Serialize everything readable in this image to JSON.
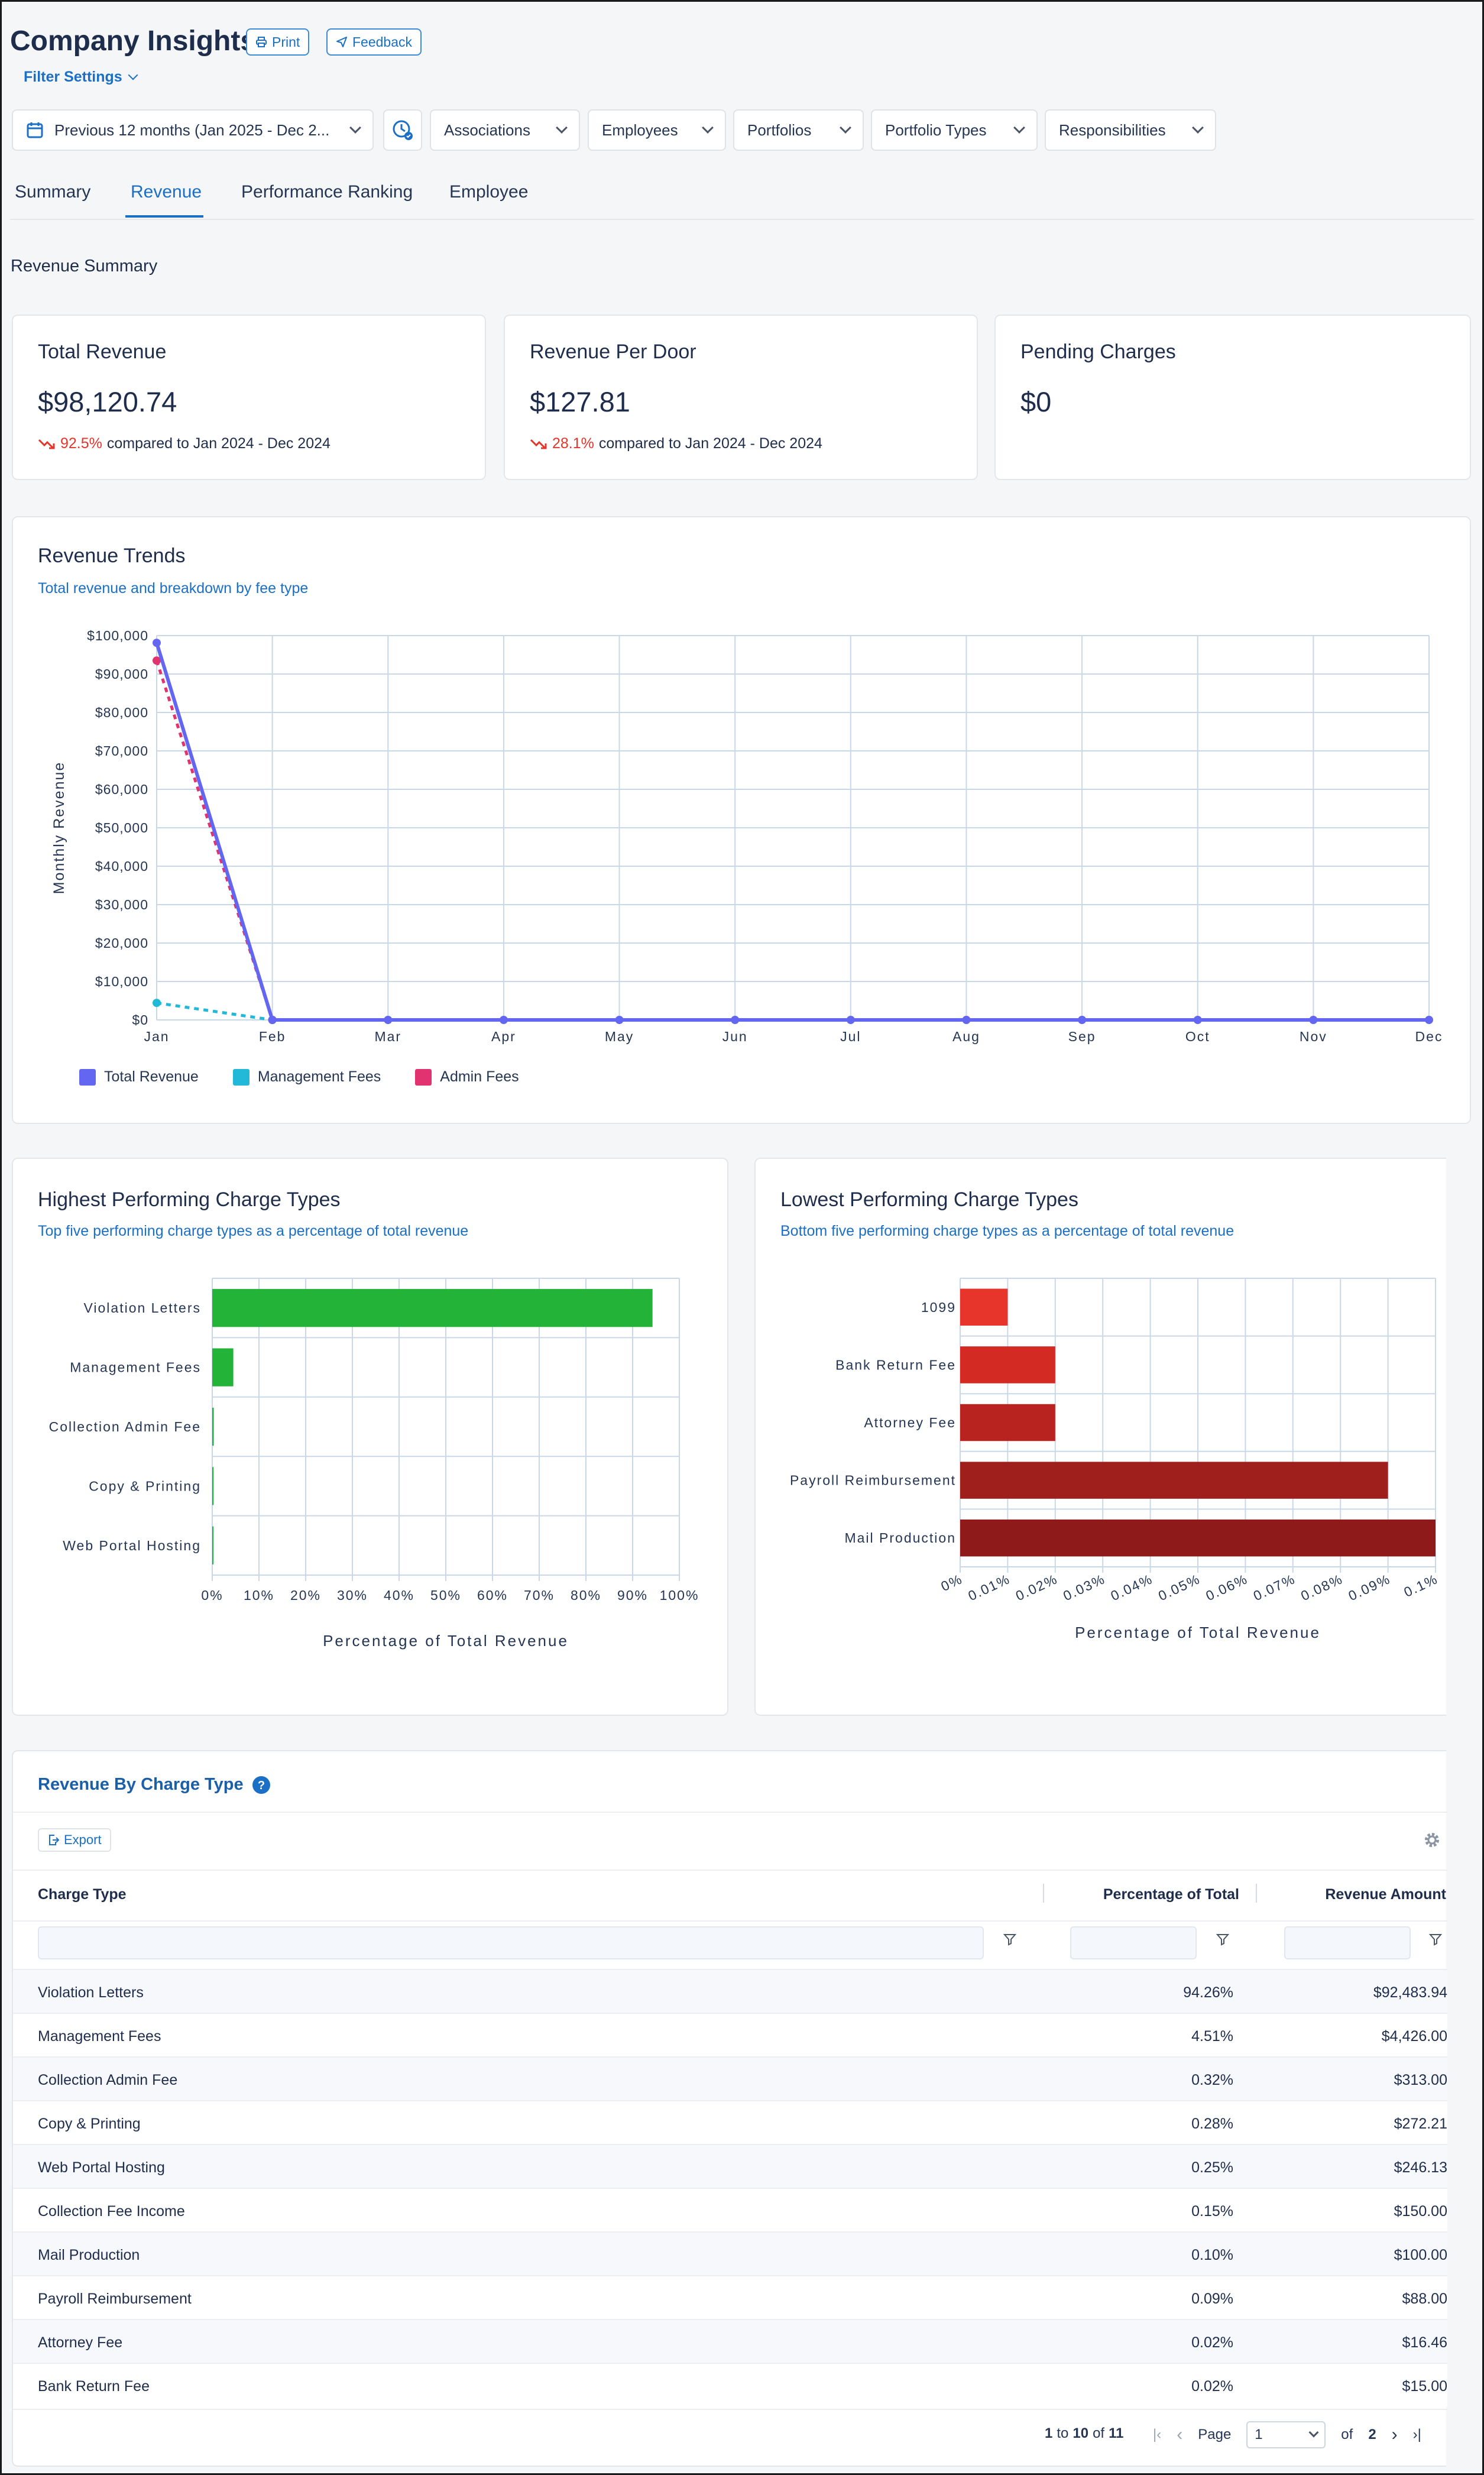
{
  "header": {
    "title": "Company Insights",
    "print_label": "Print",
    "feedback_label": "Feedback",
    "filter_settings_label": "Filter Settings"
  },
  "filters": {
    "date_range": "Previous 12 months (Jan 2025 - Dec 2...",
    "associations": "Associations",
    "employees": "Employees",
    "portfolios": "Portfolios",
    "portfolio_types": "Portfolio Types",
    "responsibilities": "Responsibilities"
  },
  "tabs": [
    "Summary",
    "Revenue",
    "Performance Ranking",
    "Employee"
  ],
  "active_tab": "Revenue",
  "section_title": "Revenue Summary",
  "kpis": [
    {
      "title": "Total Revenue",
      "value": "$98,120.74",
      "change": "92.5%",
      "compare": "compared to Jan 2024 - Dec 2024"
    },
    {
      "title": "Revenue Per Door",
      "value": "$127.81",
      "change": "28.1%",
      "compare": "compared to Jan 2024 - Dec 2024"
    },
    {
      "title": "Pending Charges",
      "value": "$0"
    }
  ],
  "trends": {
    "title": "Revenue Trends",
    "subtitle": "Total revenue and breakdown by fee type"
  },
  "highest": {
    "title": "Highest Performing Charge Types",
    "subtitle": "Top five performing charge types as a percentage of total revenue"
  },
  "lowest": {
    "title": "Lowest Performing Charge Types",
    "subtitle": "Bottom five performing charge types as a percentage of total revenue"
  },
  "chart_data": [
    {
      "type": "line",
      "x": [
        "Jan",
        "Feb",
        "Mar",
        "Apr",
        "May",
        "Jun",
        "Jul",
        "Aug",
        "Sep",
        "Oct",
        "Nov",
        "Dec"
      ],
      "series": [
        {
          "name": "Total Revenue",
          "color": "#6366f1",
          "values": [
            98120.74,
            0,
            0,
            0,
            0,
            0,
            0,
            0,
            0,
            0,
            0,
            0
          ]
        },
        {
          "name": "Management Fees",
          "color": "#22b8d8",
          "values": [
            4426,
            0,
            null,
            null,
            null,
            null,
            null,
            null,
            null,
            null,
            null,
            null
          ]
        },
        {
          "name": "Admin Fees",
          "color": "#e0336f",
          "values": [
            93500,
            0,
            null,
            null,
            null,
            null,
            null,
            null,
            null,
            null,
            null,
            null
          ]
        }
      ],
      "ylabel": "Monthly Revenue",
      "yticks": [
        "$0",
        "$10,000",
        "$20,000",
        "$30,000",
        "$40,000",
        "$50,000",
        "$60,000",
        "$70,000",
        "$80,000",
        "$90,000",
        "$100,000"
      ],
      "ylim": [
        0,
        100000
      ],
      "grid": true,
      "legend": "bottom-left"
    },
    {
      "type": "bar",
      "orientation": "horizontal",
      "categories": [
        "Violation Letters",
        "Management Fees",
        "Collection Admin Fee",
        "Copy & Printing",
        "Web Portal Hosting"
      ],
      "values": [
        94.26,
        4.51,
        0.32,
        0.28,
        0.25
      ],
      "color": "#22b338",
      "xlabel": "Percentage of Total Revenue",
      "xticks": [
        "0%",
        "10%",
        "20%",
        "30%",
        "40%",
        "50%",
        "60%",
        "70%",
        "80%",
        "90%",
        "100%"
      ],
      "xlim": [
        0,
        100
      ]
    },
    {
      "type": "bar",
      "orientation": "horizontal",
      "categories": [
        "1099",
        "Bank Return Fee",
        "Attorney Fee",
        "Payroll Reimbursement",
        "Mail Production"
      ],
      "values": [
        0.01,
        0.02,
        0.02,
        0.09,
        0.1
      ],
      "colors": [
        "#e8352b",
        "#d32b24",
        "#b9231f",
        "#9f1f1d",
        "#8e1b19"
      ],
      "xlabel": "Percentage of Total Revenue",
      "xticks": [
        "0%",
        "0.01%",
        "0.02%",
        "0.03%",
        "0.04%",
        "0.05%",
        "0.06%",
        "0.07%",
        "0.08%",
        "0.09%",
        "0.1%"
      ],
      "xlim": [
        0,
        0.1
      ]
    }
  ],
  "table": {
    "title": "Revenue By Charge Type",
    "export_label": "Export",
    "columns": [
      "Charge Type",
      "Percentage of Total",
      "Revenue Amount"
    ],
    "rows": [
      [
        "Violation Letters",
        "94.26%",
        "$92,483.94"
      ],
      [
        "Management Fees",
        "4.51%",
        "$4,426.00"
      ],
      [
        "Collection Admin Fee",
        "0.32%",
        "$313.00"
      ],
      [
        "Copy & Printing",
        "0.28%",
        "$272.21"
      ],
      [
        "Web Portal Hosting",
        "0.25%",
        "$246.13"
      ],
      [
        "Collection Fee Income",
        "0.15%",
        "$150.00"
      ],
      [
        "Mail Production",
        "0.10%",
        "$100.00"
      ],
      [
        "Payroll Reimbursement",
        "0.09%",
        "$88.00"
      ],
      [
        "Attorney Fee",
        "0.02%",
        "$16.46"
      ],
      [
        "Bank Return Fee",
        "0.02%",
        "$15.00"
      ]
    ],
    "pagination": {
      "range_start": "1",
      "to": "to",
      "range_end": "10",
      "of": "of",
      "total": "11",
      "page_label": "Page",
      "current_page": "1",
      "of_pages": "of",
      "total_pages": "2"
    }
  }
}
